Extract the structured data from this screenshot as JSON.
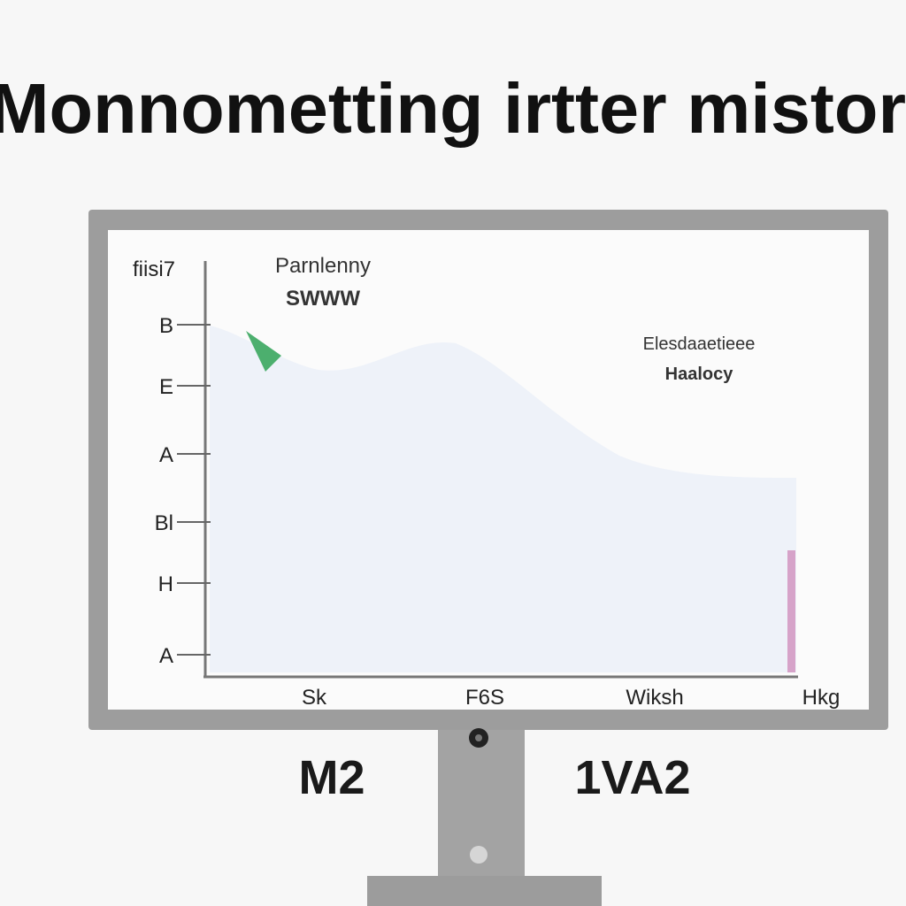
{
  "header": {
    "title": "Monnometting irtter mistor"
  },
  "screen": {
    "corner_label": "fiisi7",
    "title": [
      "Parnlenny",
      "SWWW"
    ],
    "legend": [
      "Elesdaaetieee",
      "Haalocy"
    ],
    "y_labels": [
      "B",
      "E",
      "A",
      "Bl",
      "H",
      "A"
    ],
    "x_labels": [
      "Sk",
      "F6S",
      "Wiksh",
      "Hkg"
    ]
  },
  "stand": {
    "labels": [
      "M2",
      "1VA2"
    ]
  }
}
